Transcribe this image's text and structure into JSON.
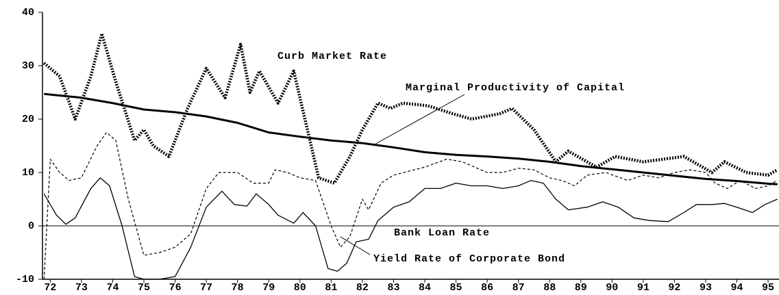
{
  "chart_data": {
    "type": "line",
    "xlim": [
      71.75,
      95.35
    ],
    "xticks": [
      72,
      73,
      74,
      75,
      76,
      77,
      78,
      79,
      80,
      81,
      82,
      83,
      84,
      85,
      86,
      87,
      88,
      89,
      90,
      91,
      92,
      93,
      94,
      95
    ],
    "ylim": [
      -10,
      40
    ],
    "yticks": [
      -10,
      0,
      10,
      20,
      30,
      40
    ],
    "series": [
      {
        "name": "Curb Market Rate",
        "color": "#000000",
        "style": "dotted-thick",
        "x": [
          71.8,
          72.3,
          72.8,
          73.3,
          73.65,
          74.1,
          74.7,
          75.0,
          75.3,
          75.8,
          76.4,
          77.0,
          77.6,
          78.1,
          78.4,
          78.7,
          79.3,
          79.8,
          80.6,
          81.1,
          81.6,
          82.0,
          82.5,
          82.9,
          83.3,
          84.1,
          84.9,
          85.5,
          86.4,
          86.8,
          87.5,
          88.2,
          88.6,
          89.5,
          90.1,
          91.0,
          92.3,
          93.2,
          93.6,
          94.3,
          95.0,
          95.3
        ],
        "values": [
          30.5,
          28,
          20,
          28,
          36,
          27,
          16,
          18,
          15,
          13,
          22,
          29.5,
          24,
          34,
          25,
          29,
          23,
          29,
          9,
          8,
          13,
          18,
          23,
          22,
          23,
          22.5,
          21,
          20,
          21,
          22,
          18,
          12,
          14,
          11,
          13,
          12,
          13,
          10,
          12,
          10,
          9.5,
          10.5
        ]
      },
      {
        "name": "Marginal Productivity of Capital",
        "color": "#000000",
        "style": "thick",
        "x": [
          71.8,
          73,
          74,
          75,
          76,
          77,
          78,
          79,
          80,
          81,
          82,
          83,
          84,
          85,
          86,
          87,
          88,
          89,
          90,
          91,
          92,
          93,
          94,
          95,
          95.3
        ],
        "values": [
          24.7,
          24,
          23,
          21.8,
          21.3,
          20.5,
          19.3,
          17.5,
          16.7,
          16,
          15.5,
          14.7,
          13.8,
          13.3,
          13,
          12.6,
          12,
          11.2,
          10.6,
          10,
          9.4,
          8.8,
          8.4,
          7.9,
          7.8
        ]
      },
      {
        "name": "Bank Loan Rate",
        "color": "#000000",
        "style": "dashed",
        "x": [
          71.8,
          72.0,
          72.3,
          72.6,
          73.0,
          73.5,
          73.8,
          74.1,
          74.5,
          75.0,
          75.5,
          76.0,
          76.5,
          77.0,
          77.4,
          78.0,
          78.5,
          79.0,
          79.2,
          79.6,
          80.0,
          80.5,
          81.0,
          81.3,
          81.6,
          82.0,
          82.2,
          82.6,
          83.0,
          84.0,
          84.7,
          85.2,
          86.0,
          86.5,
          87.0,
          87.5,
          88.0,
          88.4,
          88.8,
          89.2,
          89.8,
          90.5,
          91.0,
          91.5,
          92.0,
          92.5,
          93.0,
          93.3,
          93.7,
          94.1,
          94.6,
          95.0,
          95.3
        ],
        "values": [
          -10,
          12.5,
          10,
          8.5,
          9,
          15,
          17.5,
          16,
          5,
          -5.5,
          -5,
          -4,
          -1.5,
          7,
          10,
          10,
          8,
          8,
          10.5,
          10,
          9,
          8.5,
          0,
          -4,
          -2,
          5,
          3,
          8,
          9.5,
          11,
          12.5,
          12,
          10,
          10,
          10.8,
          10.5,
          9,
          8.5,
          7.5,
          9.5,
          10,
          8.5,
          9.5,
          9,
          10,
          10.5,
          10,
          8,
          7,
          8.5,
          7,
          7.5,
          8.5
        ]
      },
      {
        "name": "Yield Rate of Corporate Bond",
        "color": "#000000",
        "style": "thin",
        "x": [
          71.8,
          72.2,
          72.5,
          72.8,
          73.3,
          73.6,
          73.9,
          74.3,
          74.7,
          75.0,
          75.5,
          76.0,
          76.5,
          77.0,
          77.5,
          77.9,
          78.3,
          78.6,
          79.0,
          79.3,
          79.8,
          80.1,
          80.5,
          80.9,
          81.2,
          81.5,
          81.8,
          82.2,
          82.5,
          83.0,
          83.5,
          84.0,
          84.5,
          85.0,
          85.5,
          86.0,
          86.5,
          87.0,
          87.4,
          87.8,
          88.2,
          88.6,
          89.2,
          89.7,
          90.2,
          90.7,
          91.2,
          91.8,
          92.3,
          92.7,
          93.2,
          93.6,
          94.0,
          94.5,
          94.9,
          95.3
        ],
        "values": [
          6,
          2,
          0.3,
          1.5,
          7,
          9,
          7.5,
          0,
          -9.5,
          -10,
          -10,
          -9.5,
          -4,
          3.5,
          6.5,
          4,
          3.7,
          6,
          4,
          2,
          0.5,
          2.5,
          0,
          -8,
          -8.5,
          -7,
          -3,
          -2.5,
          1,
          3.5,
          4.5,
          7,
          7,
          8,
          7.5,
          7.5,
          7,
          7.5,
          8.5,
          8,
          5,
          3,
          3.5,
          4.5,
          3.5,
          1.5,
          1,
          0.8,
          2.5,
          4,
          4,
          4.2,
          3.5,
          2.5,
          4,
          5
        ]
      }
    ]
  }
}
